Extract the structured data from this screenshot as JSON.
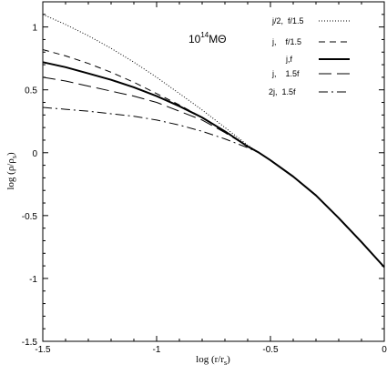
{
  "chart_data": {
    "type": "line",
    "annotation": {
      "text": "10",
      "sup": "14",
      "unit": "MΘ"
    },
    "xlabel": {
      "prefix": "log (r/r",
      "sub": "s",
      "suffix": ")"
    },
    "ylabel": {
      "prefix": "log (ρ/ρ",
      "sub": "s",
      "suffix": ")"
    },
    "xlim": [
      -1.5,
      0
    ],
    "ylim": [
      -1.5,
      1.2
    ],
    "xticks": [
      {
        "value": -1.5,
        "label": "-1.5"
      },
      {
        "value": -1,
        "label": "-1"
      },
      {
        "value": -0.5,
        "label": "-0.5"
      },
      {
        "value": 0,
        "label": "0"
      }
    ],
    "yticks": [
      {
        "value": -1.5,
        "label": "-1.5"
      },
      {
        "value": -1,
        "label": "-1"
      },
      {
        "value": -0.5,
        "label": "-0.5"
      },
      {
        "value": 0,
        "label": "0"
      },
      {
        "value": 0.5,
        "label": "0.5"
      },
      {
        "value": 1,
        "label": "1"
      }
    ],
    "grid": false,
    "legend_position": "top-right",
    "series": [
      {
        "name": "j/2,  f/1.5",
        "style": "dotted",
        "x": [
          -1.5,
          -1.4,
          -1.3,
          -1.2,
          -1.1,
          -1.0,
          -0.9,
          -0.8,
          -0.7,
          -0.6,
          -0.55,
          -0.5,
          -0.4,
          -0.3,
          -0.2,
          -0.1,
          0.0
        ],
        "y": [
          1.1,
          1.02,
          0.93,
          0.83,
          0.72,
          0.6,
          0.47,
          0.34,
          0.2,
          0.06,
          0.0,
          -0.06,
          -0.19,
          -0.34,
          -0.52,
          -0.71,
          -0.91
        ]
      },
      {
        "name": "j,    f/1.5",
        "style": "dashed",
        "x": [
          -1.5,
          -1.4,
          -1.3,
          -1.2,
          -1.1,
          -1.0,
          -0.9,
          -0.8,
          -0.7,
          -0.6,
          -0.55,
          -0.5,
          -0.4,
          -0.3,
          -0.2,
          -0.1,
          0.0
        ],
        "y": [
          0.82,
          0.77,
          0.71,
          0.64,
          0.56,
          0.47,
          0.38,
          0.28,
          0.17,
          0.05,
          0.0,
          -0.06,
          -0.19,
          -0.34,
          -0.52,
          -0.71,
          -0.91
        ]
      },
      {
        "name": "j,f",
        "style": "solid",
        "x": [
          -1.5,
          -1.4,
          -1.3,
          -1.2,
          -1.1,
          -1.0,
          -0.9,
          -0.8,
          -0.7,
          -0.6,
          -0.55,
          -0.5,
          -0.4,
          -0.3,
          -0.2,
          -0.1,
          0.0
        ],
        "y": [
          0.72,
          0.68,
          0.63,
          0.58,
          0.52,
          0.45,
          0.37,
          0.28,
          0.17,
          0.05,
          0.0,
          -0.06,
          -0.19,
          -0.34,
          -0.52,
          -0.71,
          -0.91
        ]
      },
      {
        "name": "j,    1.5f",
        "style": "long-dashed",
        "x": [
          -1.5,
          -1.4,
          -1.3,
          -1.2,
          -1.1,
          -1.0,
          -0.9,
          -0.8,
          -0.7,
          -0.6,
          -0.55,
          -0.5,
          -0.4,
          -0.3,
          -0.2,
          -0.1,
          0.0
        ],
        "y": [
          0.6,
          0.57,
          0.53,
          0.49,
          0.45,
          0.4,
          0.33,
          0.26,
          0.16,
          0.05,
          0.0,
          -0.06,
          -0.19,
          -0.34,
          -0.52,
          -0.71,
          -0.91
        ]
      },
      {
        "name": "2j,  1.5f",
        "style": "dash-dot",
        "x": [
          -1.5,
          -1.4,
          -1.3,
          -1.2,
          -1.1,
          -1.0,
          -0.9,
          -0.8,
          -0.7,
          -0.6,
          -0.55,
          -0.5,
          -0.4,
          -0.3,
          -0.2,
          -0.1,
          0.0
        ],
        "y": [
          0.36,
          0.345,
          0.33,
          0.31,
          0.29,
          0.26,
          0.22,
          0.17,
          0.11,
          0.04,
          0.0,
          -0.06,
          -0.19,
          -0.34,
          -0.52,
          -0.71,
          -0.91
        ]
      }
    ]
  }
}
